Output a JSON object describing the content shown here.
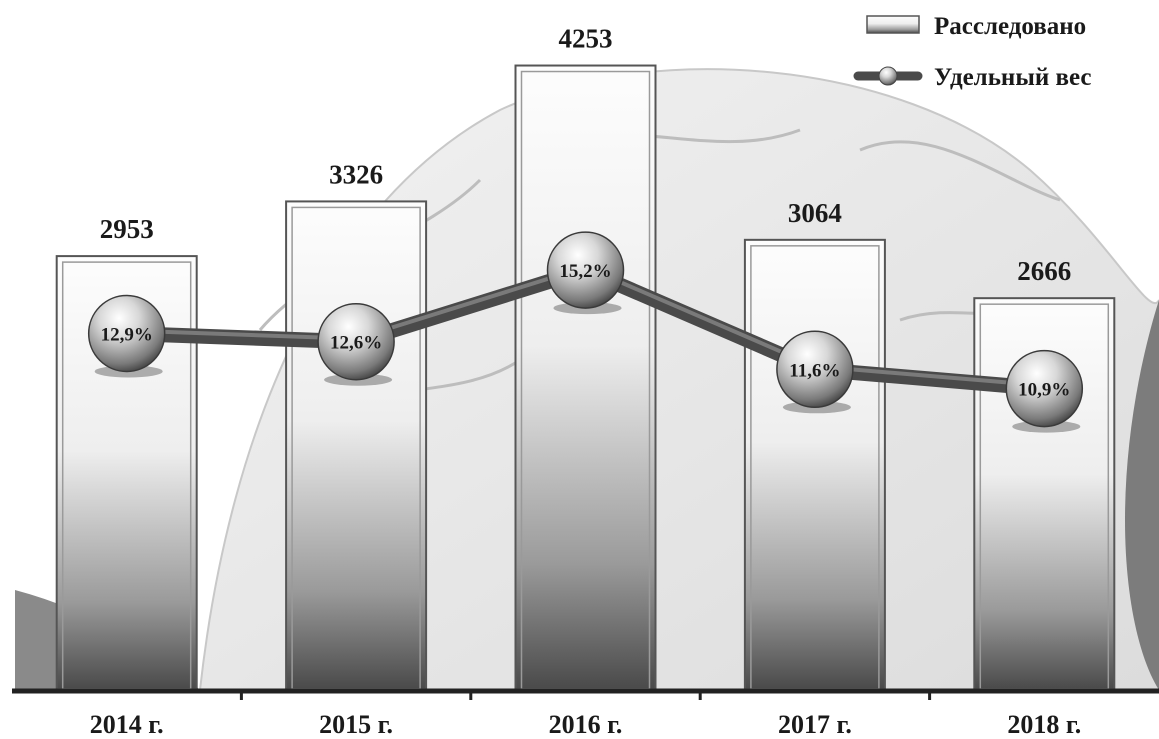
{
  "chart_data": {
    "type": "bar",
    "categories": [
      "2014 г.",
      "2015 г.",
      "2016 г.",
      "2017 г.",
      "2018 г."
    ],
    "series": [
      {
        "name": "Расследовано",
        "type": "bar",
        "values": [
          2953,
          3326,
          4253,
          3064,
          2666
        ],
        "labels": [
          "2953",
          "3326",
          "4253",
          "3064",
          "2666"
        ]
      },
      {
        "name": "Удельный вес",
        "type": "line",
        "values": [
          12.9,
          12.6,
          15.2,
          11.6,
          10.9
        ],
        "labels": [
          "12,9%",
          "12,6%",
          "15,2%",
          "11,6%",
          "10,9%"
        ]
      }
    ],
    "ylim": [
      0,
      4700
    ],
    "y2lim": [
      0,
      25
    ],
    "grid": false,
    "legend": "top-right",
    "colors": {
      "bar_fill": "#f4f4f4",
      "bar_edge": "#555555",
      "line": "#4a4a4a",
      "marker": "#8c8c8c"
    }
  }
}
